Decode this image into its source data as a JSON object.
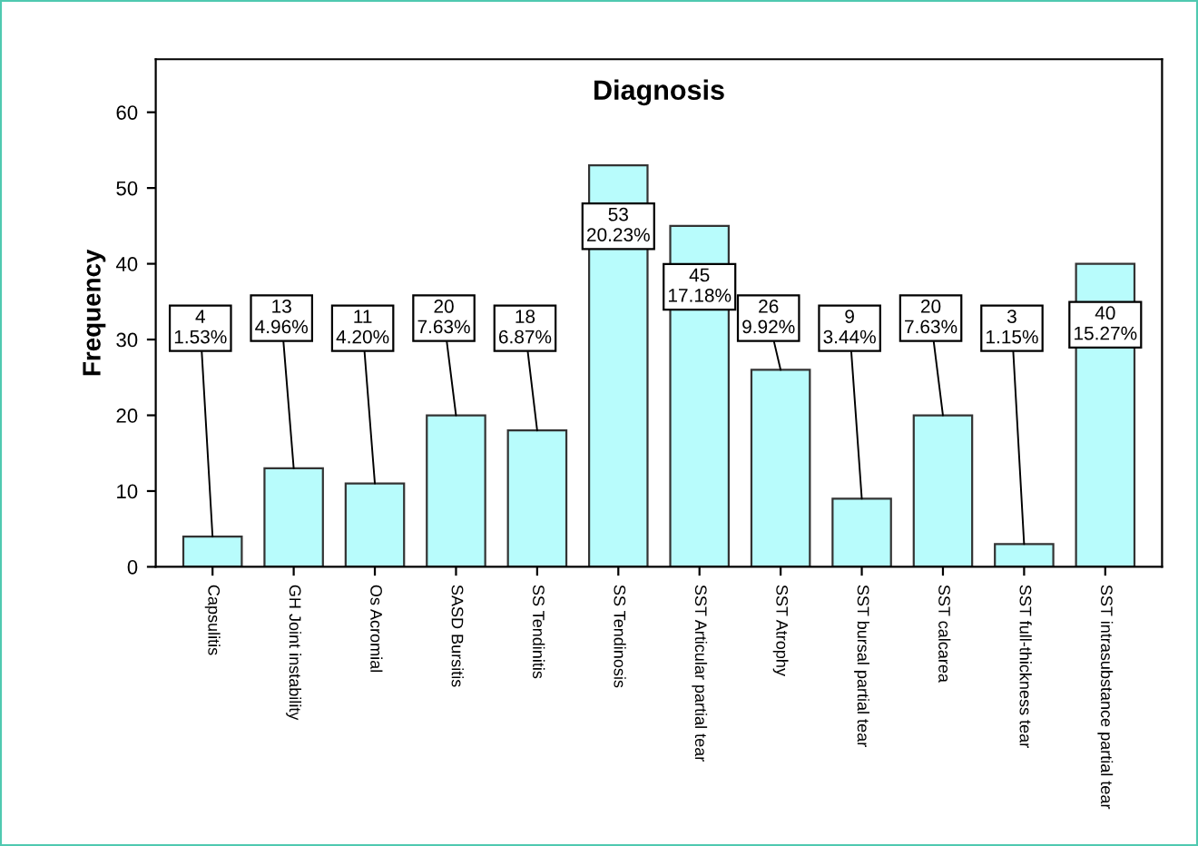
{
  "chart_data": {
    "type": "bar",
    "title": "Diagnosis",
    "ylabel": "Frequency",
    "categories": [
      "Capsulitis",
      "GH Joint instability",
      "Os Acromial",
      "SASD Bursitis",
      "SS Tendinitis",
      "SS Tendinosis",
      "SST Articular partial tear",
      "SST Atrophy",
      "SST bursal partial tear",
      "SST calcarea",
      "SST full-thickness tear",
      "SST intrasubstance partial tear"
    ],
    "values": [
      4,
      13,
      11,
      20,
      18,
      53,
      45,
      26,
      9,
      20,
      3,
      40
    ],
    "value_labels": [
      "4\n1.53%",
      "13\n4.96%",
      "11\n4.20%",
      "20\n7.63%",
      "18\n6.87%",
      "53\n20.23%",
      "45\n17.18%",
      "26\n9.92%",
      "9\n3.44%",
      "20\n7.63%",
      "3\n1.15%",
      "40\n15.27%"
    ],
    "color": "#b8fcfc",
    "ylim": [
      0,
      67
    ],
    "yticks": [
      0,
      10,
      20,
      30,
      40,
      50,
      60
    ],
    "grid": false
  }
}
